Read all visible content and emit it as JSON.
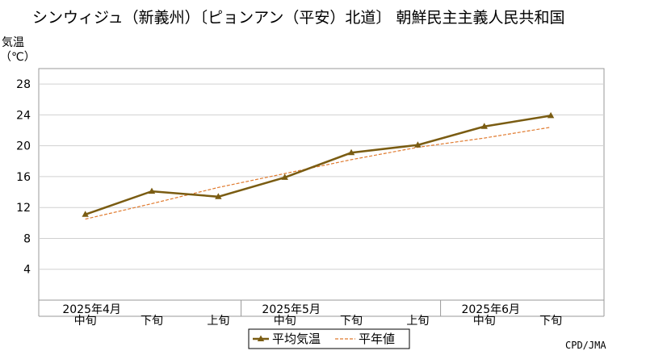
{
  "chart_data": {
    "type": "line",
    "title": "シンウィジュ（新義州）〔ピョンアン（平安）北道〕 朝鮮民主主義人民共和国",
    "ylabel_line1": "気温",
    "ylabel_line2": "（℃）",
    "ylim": [
      0,
      30
    ],
    "yticks": [
      4,
      8,
      12,
      16,
      20,
      24,
      28
    ],
    "grid": true,
    "categories": [
      "2025年4月 中旬",
      "2025年4月 下旬",
      "2025年5月 上旬",
      "2025年5月 中旬",
      "2025年5月 下旬",
      "2025年6月 上旬",
      "2025年6月 中旬",
      "2025年6月 下旬"
    ],
    "xtick_labels": [
      "中旬",
      "下旬",
      "上旬",
      "中旬",
      "下旬",
      "上旬",
      "中旬",
      "下旬"
    ],
    "month_labels": [
      {
        "label": "2025年4月",
        "index": 0
      },
      {
        "label": "2025年5月",
        "index": 3
      },
      {
        "label": "2025年6月",
        "index": 6
      }
    ],
    "series": [
      {
        "name": "平均気温",
        "style": "solid-marker",
        "color": "#7a5c12",
        "values": [
          11.1,
          14.1,
          13.4,
          15.9,
          19.1,
          20.1,
          22.5,
          23.9
        ]
      },
      {
        "name": "平年値",
        "style": "dashed",
        "color": "#e07a2e",
        "values": [
          10.5,
          12.5,
          14.6,
          16.4,
          18.2,
          19.8,
          21.0,
          22.4
        ]
      }
    ],
    "legend_position": "bottom-center",
    "credit": "CPD/JMA"
  }
}
